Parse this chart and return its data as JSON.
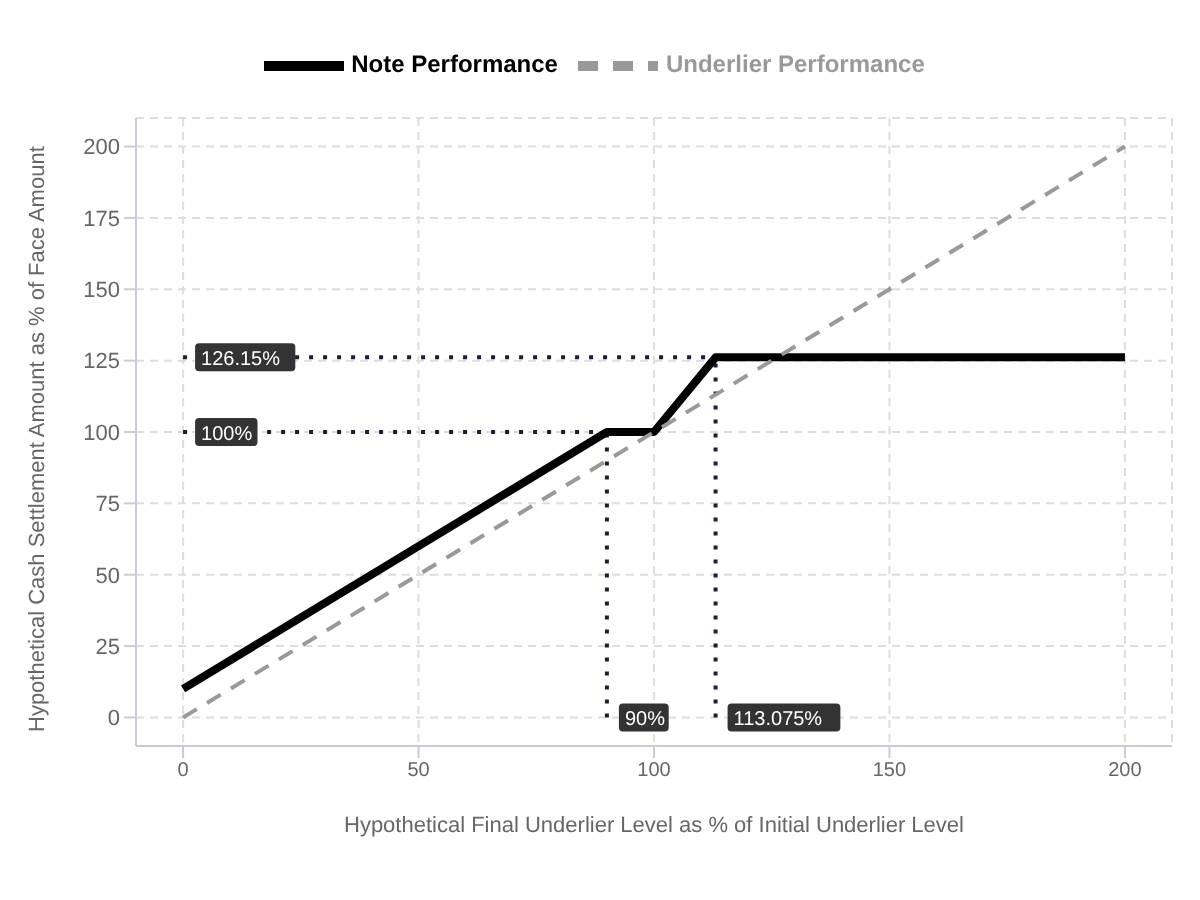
{
  "chart_data": {
    "type": "line",
    "xlabel": "Hypothetical Final Underlier Level as % of Initial Underlier Level",
    "ylabel": "Hypothetical Cash Settlement Amount as % of Face Amount",
    "xlim": [
      -10,
      210
    ],
    "xticks": [
      0,
      50,
      100,
      150,
      200
    ],
    "ylim": [
      -10,
      210
    ],
    "yticks": [
      0,
      25,
      50,
      75,
      100,
      125,
      150,
      175,
      200
    ],
    "grid": true,
    "legend": "top",
    "marker": "none",
    "series": [
      {
        "name": "Note Performance",
        "color": "#000000",
        "line_style": "solid",
        "x": [
          0,
          90,
          100,
          113.075,
          200
        ],
        "values": [
          10,
          100,
          100,
          126.15,
          126.15
        ]
      },
      {
        "name": "Underlier Performance",
        "color": "#999999",
        "line_style": "dashed",
        "x": [
          0,
          200
        ],
        "values": [
          0,
          200
        ]
      }
    ],
    "ref_lines": [
      {
        "axis": "y",
        "value": 126.15,
        "label": "126.15%",
        "color": "#1c1f33",
        "line_style": "dotted"
      },
      {
        "axis": "y",
        "value": 100,
        "label": "100%",
        "color": "#1c1f33",
        "line_style": "dotted"
      },
      {
        "axis": "x",
        "value": 90,
        "label": "90%",
        "color": "#1c1f33",
        "line_style": "dotted"
      },
      {
        "axis": "x",
        "value": 113.075,
        "label": "113.075%",
        "color": "#1c1f33",
        "line_style": "dotted"
      }
    ]
  }
}
